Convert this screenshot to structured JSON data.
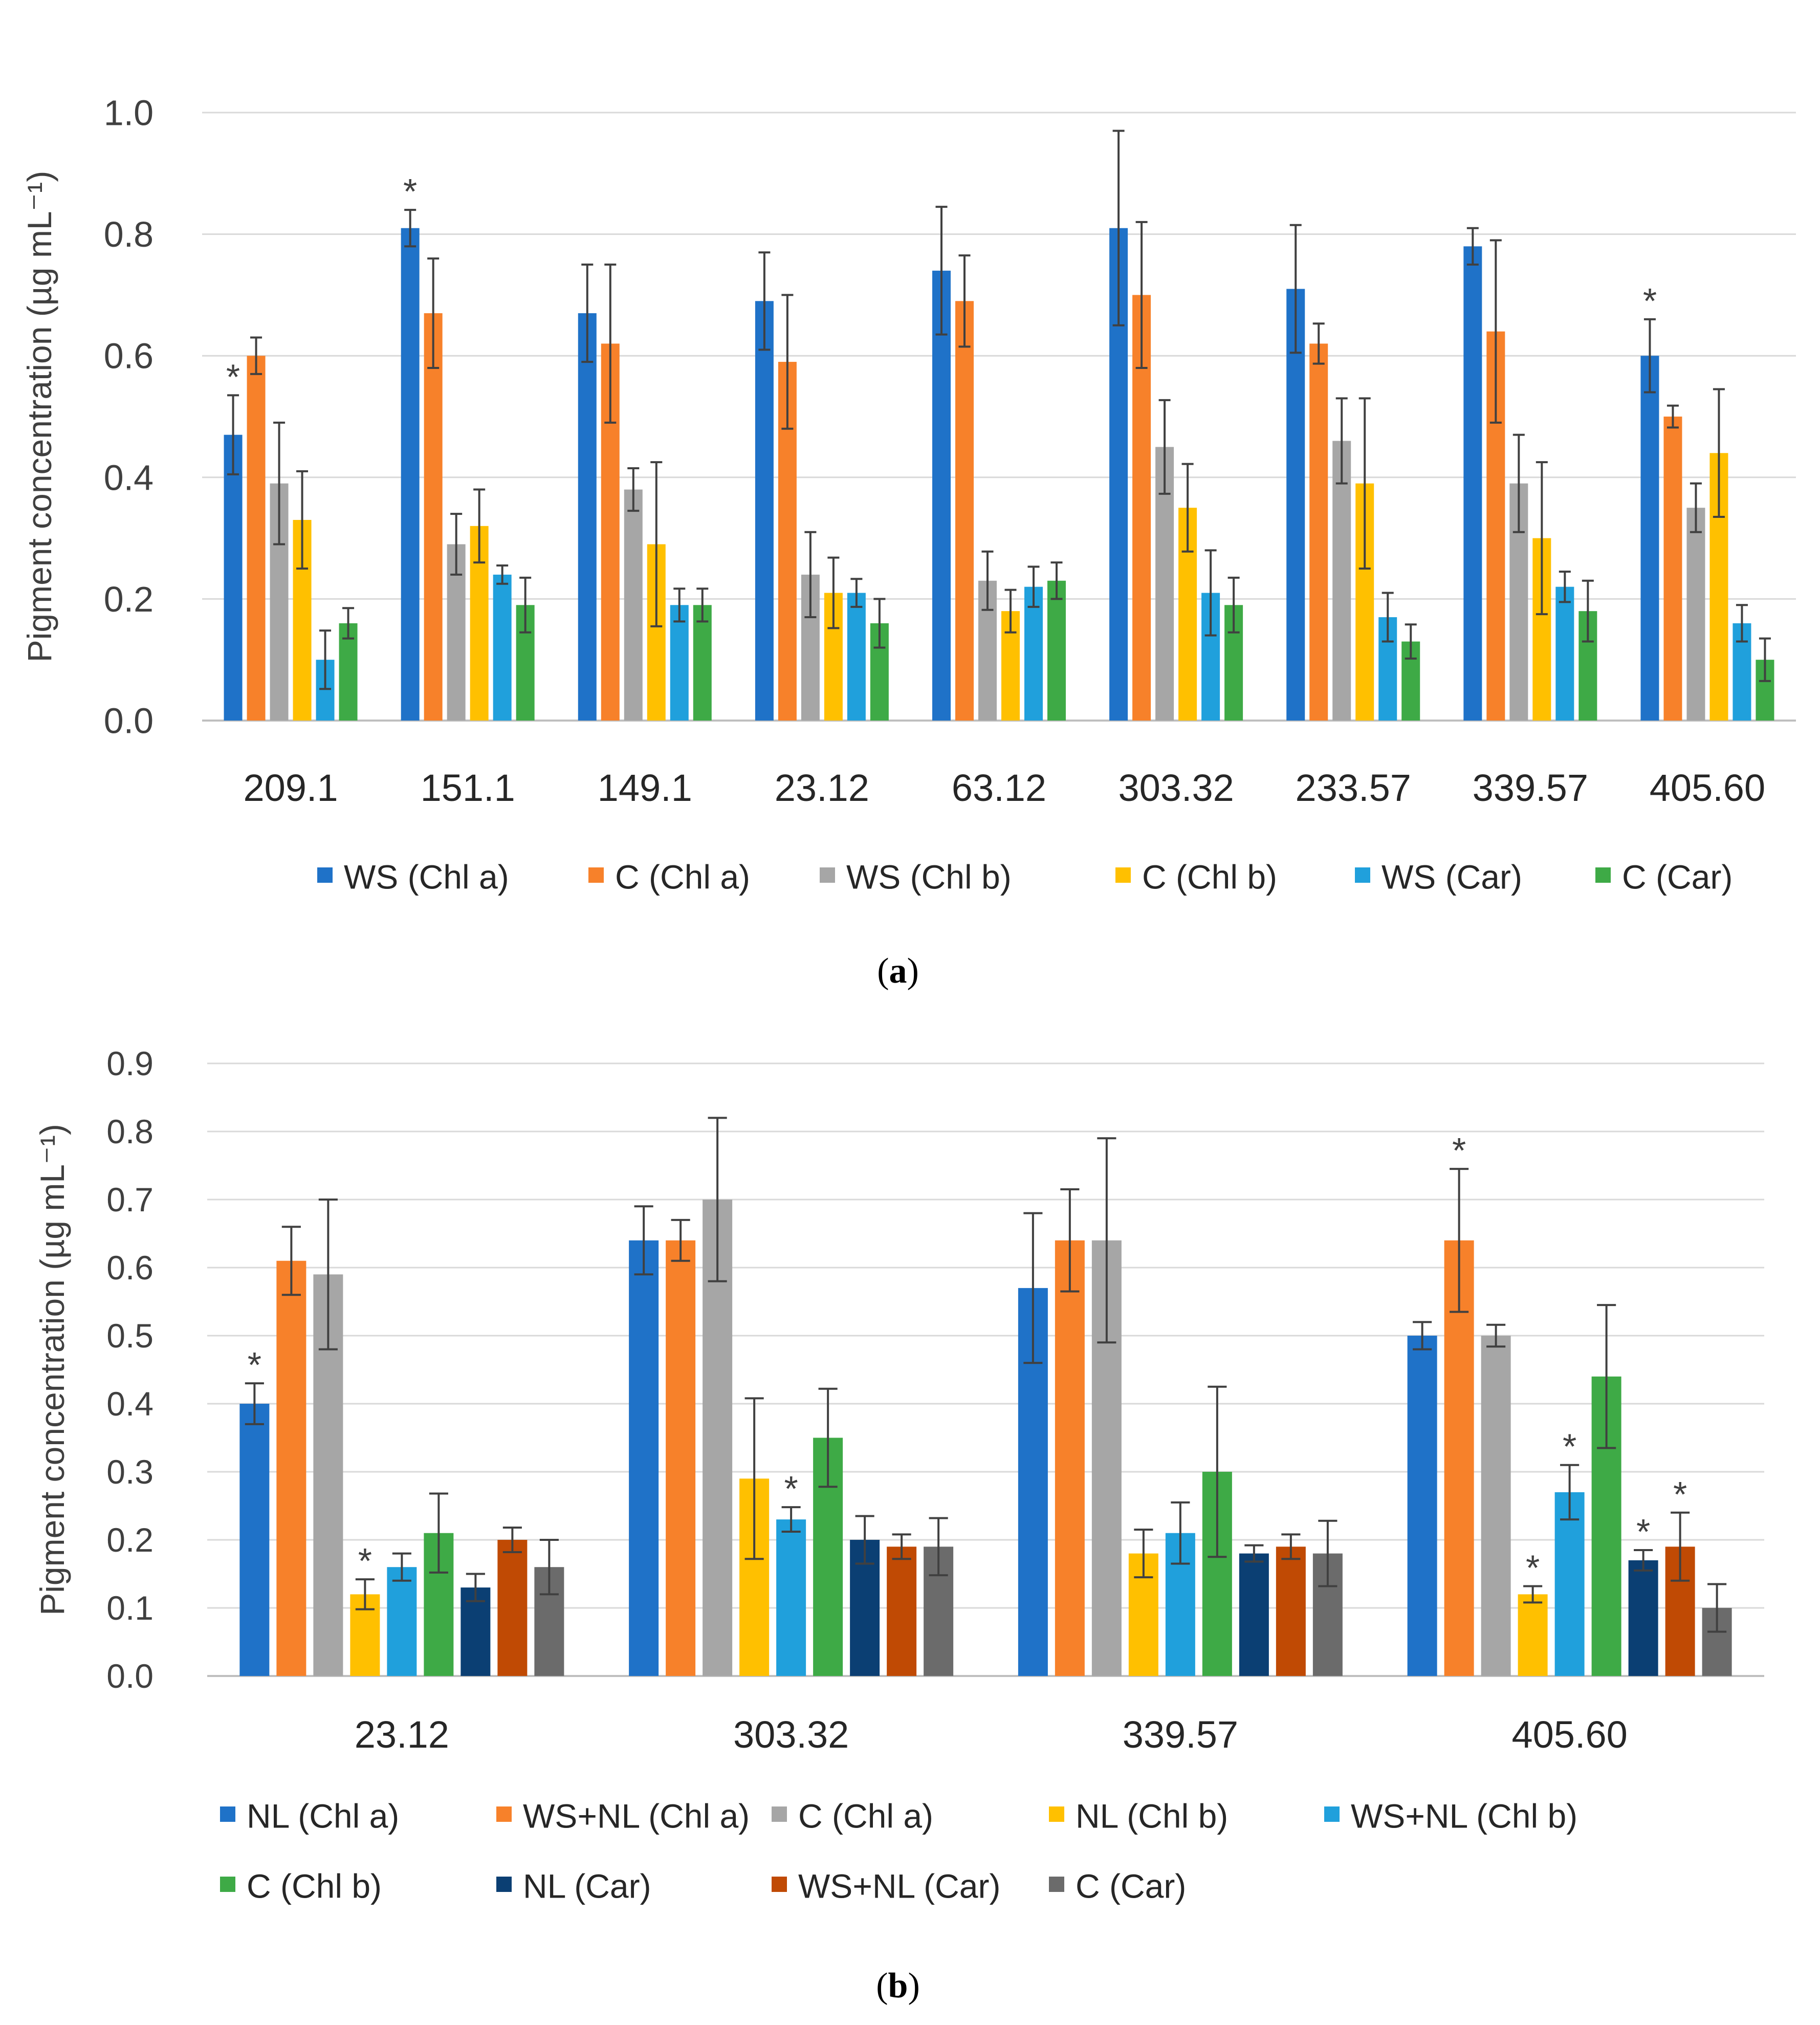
{
  "chart_data": [
    {
      "type": "bar",
      "panel": "a",
      "caption_open": "(",
      "caption_letter": "a",
      "caption_close": ")",
      "ylabel": "Pigment concentration (µg mL⁻¹)",
      "ylim": [
        0,
        1.0
      ],
      "yticks": [
        "0.0",
        "0.2",
        "0.4",
        "0.6",
        "0.8",
        "1.0"
      ],
      "ytick_values": [
        0,
        0.2,
        0.4,
        0.6,
        0.8,
        1.0
      ],
      "grid": true,
      "legend_position": "bottom",
      "categories": [
        "209.1",
        "151.1",
        "149.1",
        "23.12",
        "63.12",
        "303.32",
        "233.57",
        "339.57",
        "405.60"
      ],
      "series": [
        {
          "name": "WS (Chl a)",
          "color": "#1F72C8",
          "values": [
            0.47,
            0.81,
            0.67,
            0.69,
            0.74,
            0.81,
            0.71,
            0.78,
            0.6
          ],
          "errors": [
            0.065,
            0.03,
            0.08,
            0.08,
            0.105,
            0.16,
            0.105,
            0.03,
            0.06
          ],
          "marks": [
            true,
            true,
            false,
            false,
            false,
            false,
            false,
            false,
            true
          ]
        },
        {
          "name": "C (Chl a)",
          "color": "#F7812A",
          "values": [
            0.6,
            0.67,
            0.62,
            0.59,
            0.69,
            0.7,
            0.62,
            0.64,
            0.5
          ],
          "errors": [
            0.03,
            0.09,
            0.13,
            0.11,
            0.075,
            0.12,
            0.033,
            0.15,
            0.018
          ],
          "marks": [
            false,
            false,
            false,
            false,
            false,
            false,
            false,
            false,
            false
          ]
        },
        {
          "name": "WS (Chl b)",
          "color": "#A6A6A6",
          "values": [
            0.39,
            0.29,
            0.38,
            0.24,
            0.23,
            0.45,
            0.46,
            0.39,
            0.35
          ],
          "errors": [
            0.1,
            0.05,
            0.035,
            0.07,
            0.048,
            0.077,
            0.07,
            0.08,
            0.04
          ],
          "marks": [
            false,
            false,
            false,
            false,
            false,
            false,
            false,
            false,
            false
          ]
        },
        {
          "name": "C (Chl b)",
          "color": "#FFC000",
          "values": [
            0.33,
            0.32,
            0.29,
            0.21,
            0.18,
            0.35,
            0.39,
            0.3,
            0.44
          ],
          "errors": [
            0.08,
            0.06,
            0.135,
            0.058,
            0.035,
            0.072,
            0.14,
            0.125,
            0.105
          ],
          "marks": [
            false,
            false,
            false,
            false,
            false,
            false,
            false,
            false,
            false
          ]
        },
        {
          "name": "WS (Car)",
          "color": "#20A0DC",
          "values": [
            0.1,
            0.24,
            0.19,
            0.21,
            0.22,
            0.21,
            0.17,
            0.22,
            0.16
          ],
          "errors": [
            0.048,
            0.015,
            0.027,
            0.023,
            0.033,
            0.07,
            0.04,
            0.025,
            0.03
          ],
          "marks": [
            false,
            false,
            false,
            false,
            false,
            false,
            false,
            false,
            false
          ]
        },
        {
          "name": "C (Car)",
          "color": "#3EAA46",
          "values": [
            0.16,
            0.19,
            0.19,
            0.16,
            0.23,
            0.19,
            0.13,
            0.18,
            0.1
          ],
          "errors": [
            0.025,
            0.045,
            0.027,
            0.04,
            0.03,
            0.045,
            0.028,
            0.05,
            0.035
          ],
          "marks": [
            false,
            false,
            false,
            false,
            false,
            false,
            false,
            false,
            false
          ]
        }
      ]
    },
    {
      "type": "bar",
      "panel": "b",
      "caption_open": "(",
      "caption_letter": "b",
      "caption_close": ")",
      "ylabel": "Pigment concentration (µg mL⁻¹)",
      "ylim": [
        0,
        0.9
      ],
      "yticks": [
        "0.0",
        "0.1",
        "0.2",
        "0.3",
        "0.4",
        "0.5",
        "0.6",
        "0.7",
        "0.8",
        "0.9"
      ],
      "ytick_values": [
        0,
        0.1,
        0.2,
        0.3,
        0.4,
        0.5,
        0.6,
        0.7,
        0.8,
        0.9
      ],
      "grid": true,
      "legend_position": "bottom",
      "categories": [
        "23.12",
        "303.32",
        "339.57",
        "405.60"
      ],
      "series": [
        {
          "name": "NL (Chl a)",
          "color": "#1F72C8",
          "values": [
            0.4,
            0.64,
            0.57,
            0.5
          ],
          "errors": [
            0.03,
            0.05,
            0.11,
            0.02
          ],
          "marks": [
            true,
            false,
            false,
            false
          ]
        },
        {
          "name": "WS+NL (Chl a)",
          "color": "#F7812A",
          "values": [
            0.61,
            0.64,
            0.64,
            0.64
          ],
          "errors": [
            0.05,
            0.03,
            0.075,
            0.105
          ],
          "marks": [
            false,
            false,
            false,
            true
          ]
        },
        {
          "name": "C (Chl a)",
          "color": "#A6A6A6",
          "values": [
            0.59,
            0.7,
            0.64,
            0.5
          ],
          "errors": [
            0.11,
            0.12,
            0.15,
            0.016
          ],
          "marks": [
            false,
            false,
            false,
            false
          ]
        },
        {
          "name": "NL (Chl b)",
          "color": "#FFC000",
          "values": [
            0.12,
            0.29,
            0.18,
            0.12
          ],
          "errors": [
            0.022,
            0.118,
            0.035,
            0.012
          ],
          "marks": [
            true,
            false,
            false,
            true
          ]
        },
        {
          "name": "WS+NL (Chl b)",
          "color": "#20A0DC",
          "values": [
            0.16,
            0.23,
            0.21,
            0.27
          ],
          "errors": [
            0.02,
            0.018,
            0.045,
            0.04
          ],
          "marks": [
            false,
            true,
            false,
            true
          ]
        },
        {
          "name": "C (Chl b)",
          "color": "#3EAA46",
          "values": [
            0.21,
            0.35,
            0.3,
            0.44
          ],
          "errors": [
            0.058,
            0.072,
            0.125,
            0.105
          ],
          "marks": [
            false,
            false,
            false,
            false
          ]
        },
        {
          "name": "NL (Car)",
          "color": "#0B3F73",
          "values": [
            0.13,
            0.2,
            0.18,
            0.17
          ],
          "errors": [
            0.02,
            0.035,
            0.012,
            0.015
          ],
          "marks": [
            false,
            false,
            false,
            true
          ]
        },
        {
          "name": "WS+NL (Car)",
          "color": "#C04A04",
          "values": [
            0.2,
            0.19,
            0.19,
            0.19
          ],
          "errors": [
            0.018,
            0.018,
            0.018,
            0.05
          ],
          "marks": [
            false,
            false,
            false,
            true
          ]
        },
        {
          "name": "C (Car)",
          "color": "#6B6B6B",
          "values": [
            0.16,
            0.19,
            0.18,
            0.1
          ],
          "errors": [
            0.04,
            0.042,
            0.048,
            0.035
          ],
          "marks": [
            false,
            false,
            false,
            false
          ]
        }
      ]
    }
  ],
  "asterisk": "*"
}
